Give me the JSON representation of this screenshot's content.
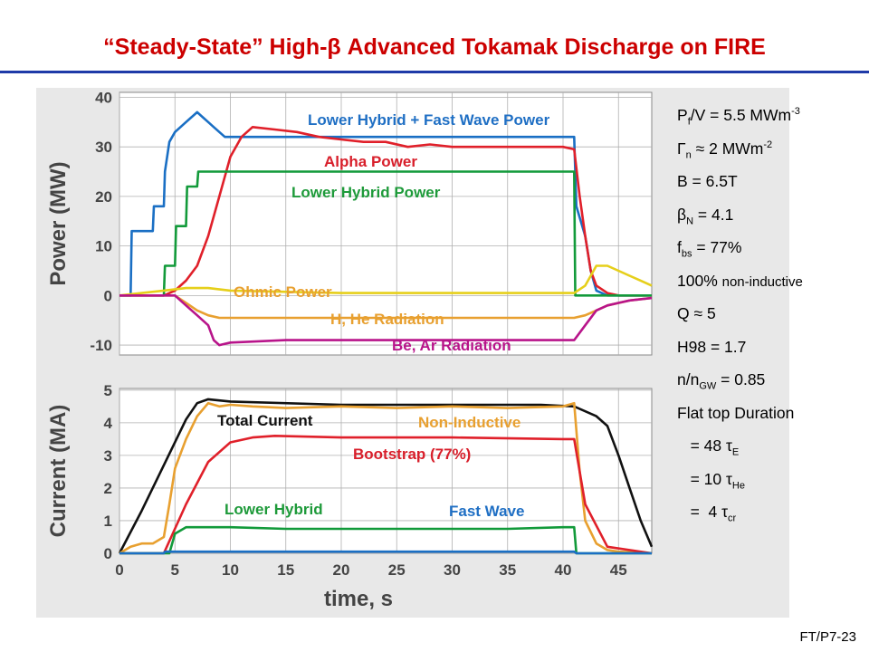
{
  "slide": {
    "title": "“Steady-State” High-β Advanced Tokamak Discharge on FIRE",
    "footer_id": "FT/P7-23"
  },
  "parameters": [
    {
      "pre": "P",
      "sub": "f",
      "post": "/V = 5.5 MWm",
      "sup": "-3",
      "tail": ""
    },
    {
      "pre": "Γ",
      "sub": "n",
      "post": " ≈ 2 MWm",
      "sup": "-2",
      "tail": ""
    },
    {
      "pre": "B = 6.5T",
      "sub": "",
      "post": "",
      "sup": "",
      "tail": ""
    },
    {
      "pre": "β",
      "sub": "N",
      "post": " = 4.1",
      "sup": "",
      "tail": ""
    },
    {
      "pre": "f",
      "sub": "bs",
      "post": " = 77%",
      "sup": "",
      "tail": ""
    },
    {
      "pre": "100% ",
      "sub": "",
      "post": "",
      "sup": "",
      "tail": "non-inductive"
    },
    {
      "pre": "Q ≈ 5",
      "sub": "",
      "post": "",
      "sup": "",
      "tail": ""
    },
    {
      "pre": "H98 = 1.7",
      "sub": "",
      "post": "",
      "sup": "",
      "tail": ""
    },
    {
      "pre": "n/n",
      "sub": "GW",
      "post": " = 0.85",
      "sup": "",
      "tail": ""
    },
    {
      "pre": "Flat top Duration",
      "sub": "",
      "post": "",
      "sup": "",
      "tail": ""
    },
    {
      "pre": "   = 48 τ",
      "sub": "E",
      "post": "",
      "sup": "",
      "tail": ""
    },
    {
      "pre": "   = 10 τ",
      "sub": "He",
      "post": "",
      "sup": "",
      "tail": ""
    },
    {
      "pre": "   =  4 τ",
      "sub": "cr",
      "post": "",
      "sup": "",
      "tail": ""
    }
  ],
  "colors": {
    "title": "#cc0000",
    "rule": "#1f3aa8",
    "blue": "#1a6fc4",
    "red": "#e0202a",
    "green": "#129a3a",
    "yellow": "#e6cf1a",
    "orange": "#e8a030",
    "magenta": "#b8148a",
    "black": "#111111",
    "label_blue": "#1f6fc4",
    "label_red": "#d81e2a",
    "label_green": "#1e9a3a",
    "label_orange": "#e8a030",
    "label_magenta": "#b8148a",
    "panel": "#e8e8e8"
  },
  "chart_data": [
    {
      "type": "line",
      "ylabel": "Power (MW)",
      "xlim": [
        0,
        48
      ],
      "ylim": [
        -12,
        41
      ],
      "yticks": [
        -10,
        0,
        10,
        20,
        30,
        40
      ],
      "grid": true,
      "series": [
        {
          "name": "Lower Hybrid + Fast Wave Power",
          "color": "#1a6fc4",
          "x": [
            0,
            1,
            1.1,
            3,
            3.1,
            4,
            4.1,
            4.5,
            5,
            5.5,
            6,
            6.5,
            7,
            7.5,
            8,
            8.5,
            9,
            9.5,
            10,
            41,
            41.2,
            42,
            42.5,
            43,
            44,
            45,
            48
          ],
          "y": [
            0,
            0,
            13,
            13,
            18,
            18,
            25,
            31,
            33,
            34,
            35,
            36,
            37,
            36,
            35,
            34,
            33,
            32,
            32,
            32,
            18,
            12,
            5,
            1,
            0,
            0,
            0
          ]
        },
        {
          "name": "Alpha Power",
          "color": "#e0202a",
          "x": [
            0,
            4,
            5,
            6,
            7,
            8,
            9,
            10,
            11,
            12,
            14,
            16,
            18,
            20,
            22,
            24,
            26,
            28,
            30,
            32,
            34,
            36,
            38,
            40,
            41,
            41.5,
            42,
            42.5,
            43,
            44,
            45,
            48
          ],
          "y": [
            0,
            0,
            1,
            3,
            6,
            12,
            20,
            28,
            32,
            34,
            33.5,
            33,
            32,
            31.5,
            31,
            31,
            30,
            30.5,
            30,
            30,
            30,
            30,
            30,
            30,
            29.5,
            20,
            12,
            5,
            2,
            0.5,
            0,
            0
          ]
        },
        {
          "name": "Lower Hybrid Power",
          "color": "#129a3a",
          "x": [
            0,
            4,
            4.1,
            5,
            5.1,
            6,
            6.1,
            7,
            7.1,
            41,
            41.1,
            48
          ],
          "y": [
            0,
            0,
            6,
            6,
            14,
            14,
            22,
            22,
            25,
            25,
            0,
            0
          ]
        },
        {
          "name": "Ohmic Power",
          "color": "#e6cf1a",
          "x": [
            0,
            2,
            4,
            6,
            8,
            10,
            20,
            30,
            41,
            42,
            43,
            44,
            45,
            46,
            47,
            48
          ],
          "y": [
            0,
            0.5,
            1,
            1.5,
            1.5,
            1,
            0.5,
            0.5,
            0.5,
            2,
            6,
            6,
            5,
            4,
            3,
            2
          ]
        },
        {
          "name": "H, He Radiation",
          "color": "#e8a030",
          "x": [
            0,
            5,
            6,
            7,
            8,
            9,
            10,
            20,
            30,
            41,
            42,
            43,
            44,
            46,
            48
          ],
          "y": [
            0,
            0,
            -1.5,
            -3,
            -4,
            -4.5,
            -4.5,
            -4.5,
            -4.5,
            -4.5,
            -4,
            -3,
            -2,
            -1,
            -0.5
          ]
        },
        {
          "name": "Be, Ar Radiation",
          "color": "#b8148a",
          "x": [
            0,
            5,
            6,
            7,
            8,
            8.5,
            9,
            10,
            15,
            20,
            25,
            30,
            35,
            41,
            42,
            43,
            44,
            45,
            46,
            48
          ],
          "y": [
            0,
            0,
            -2,
            -4,
            -6,
            -9,
            -10,
            -9.5,
            -9,
            -9,
            -9,
            -9,
            -9,
            -9,
            -6,
            -3,
            -2,
            -1.5,
            -1,
            -0.5
          ]
        }
      ],
      "annotations": [
        {
          "text": "Ohmic Power",
          "color": "#e8a030"
        }
      ]
    },
    {
      "type": "line",
      "xlabel": "time, s",
      "ylabel": "Current (MA)",
      "xlim": [
        0,
        48
      ],
      "ylim": [
        0,
        5.05
      ],
      "xticks": [
        0,
        5,
        10,
        15,
        20,
        25,
        30,
        35,
        40,
        45
      ],
      "yticks": [
        0,
        1,
        2,
        3,
        4,
        5
      ],
      "grid": true,
      "series": [
        {
          "name": "Total Current",
          "color": "#111111",
          "x": [
            0,
            2,
            4,
            6,
            7,
            8,
            10,
            20,
            30,
            38,
            41,
            43,
            44,
            45,
            46,
            47,
            48
          ],
          "y": [
            0,
            1.3,
            2.7,
            4.1,
            4.6,
            4.72,
            4.65,
            4.55,
            4.55,
            4.55,
            4.5,
            4.2,
            3.9,
            3.0,
            2.0,
            1.0,
            0.2
          ]
        },
        {
          "name": "Non-Inductive",
          "color": "#e8a030",
          "x": [
            0,
            1,
            2,
            3,
            4,
            4.5,
            5,
            6,
            7,
            8,
            9,
            10,
            12,
            15,
            20,
            25,
            30,
            35,
            40,
            41,
            41.5,
            42,
            43,
            44,
            45,
            48
          ],
          "y": [
            0,
            0.2,
            0.3,
            0.3,
            0.5,
            1.5,
            2.6,
            3.5,
            4.2,
            4.6,
            4.5,
            4.55,
            4.5,
            4.45,
            4.5,
            4.45,
            4.5,
            4.45,
            4.5,
            4.6,
            2.5,
            1.0,
            0.3,
            0.1,
            0.05,
            0
          ]
        },
        {
          "name": "Bootstrap (77%)",
          "color": "#e0202a",
          "x": [
            0,
            4,
            6,
            8,
            10,
            12,
            14,
            20,
            30,
            40,
            41,
            42,
            44,
            48
          ],
          "y": [
            0,
            0,
            1.5,
            2.8,
            3.4,
            3.55,
            3.6,
            3.55,
            3.55,
            3.5,
            3.5,
            1.5,
            0.2,
            0
          ]
        },
        {
          "name": "Lower Hybrid",
          "color": "#129a3a",
          "x": [
            0,
            4.5,
            5,
            6,
            8,
            10,
            15,
            20,
            25,
            30,
            35,
            40,
            41,
            41.2,
            48
          ],
          "y": [
            0,
            0,
            0.6,
            0.8,
            0.8,
            0.8,
            0.75,
            0.75,
            0.75,
            0.75,
            0.75,
            0.8,
            0.8,
            0,
            0
          ]
        },
        {
          "name": "Fast Wave",
          "color": "#1a6fc4",
          "x": [
            0,
            4,
            4.1,
            41,
            41.2,
            48
          ],
          "y": [
            0,
            0,
            0.05,
            0.05,
            0,
            0
          ]
        }
      ]
    }
  ]
}
